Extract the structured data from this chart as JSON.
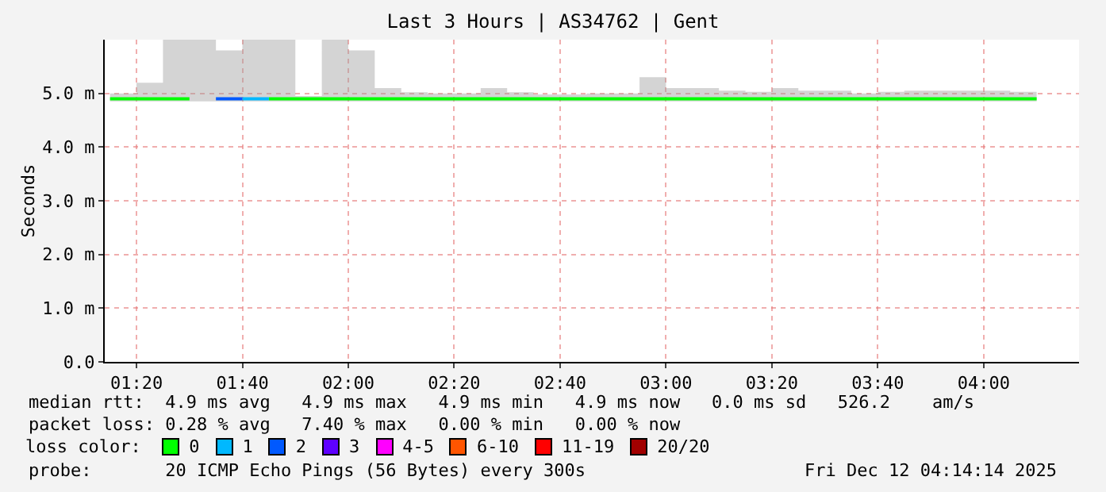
{
  "chart_data": {
    "type": "step",
    "title": "Last 3 Hours | AS34762 | Gent",
    "ylabel": "Seconds",
    "legend_title": "loss color:",
    "x": [
      "2025-12-12T01:15",
      "2025-12-12T01:20",
      "2025-12-12T01:25",
      "2025-12-12T01:30",
      "2025-12-12T01:35",
      "2025-12-12T01:40",
      "2025-12-12T01:45",
      "2025-12-12T01:50",
      "2025-12-12T01:55",
      "2025-12-12T02:00",
      "2025-12-12T02:05",
      "2025-12-12T02:10",
      "2025-12-12T02:15",
      "2025-12-12T02:20",
      "2025-12-12T02:25",
      "2025-12-12T02:30",
      "2025-12-12T02:35",
      "2025-12-12T02:40",
      "2025-12-12T02:45",
      "2025-12-12T02:50",
      "2025-12-12T02:55",
      "2025-12-12T03:00",
      "2025-12-12T03:05",
      "2025-12-12T03:10",
      "2025-12-12T03:15",
      "2025-12-12T03:20",
      "2025-12-12T03:25",
      "2025-12-12T03:30",
      "2025-12-12T03:35",
      "2025-12-12T03:40",
      "2025-12-12T03:45",
      "2025-12-12T03:50",
      "2025-12-12T03:55",
      "2025-12-12T04:00",
      "2025-12-12T04:05",
      "2025-12-12T04:10"
    ],
    "series": [
      {
        "name": "0",
        "color": "#00ff00",
        "values": [
          4.9,
          4.9,
          4.9,
          4.9,
          null,
          null,
          4.9,
          4.9,
          4.9,
          4.9,
          4.9,
          4.9,
          4.9,
          4.9,
          4.9,
          4.9,
          4.9,
          4.9,
          4.9,
          4.9,
          4.9,
          4.9,
          4.9,
          4.9,
          4.9,
          4.9,
          4.9,
          4.9,
          4.9,
          4.9,
          4.9,
          4.9,
          4.9,
          4.9,
          4.9,
          4.9
        ],
        "lower": [
          4.85,
          4.85,
          4.85,
          4.85,
          4.85,
          4.85,
          4.85,
          4.85,
          4.85,
          4.85,
          4.85,
          4.85,
          4.85,
          4.85,
          4.85,
          4.85,
          4.85,
          4.85,
          4.85,
          4.85,
          4.85,
          4.85,
          4.85,
          4.85,
          4.85,
          4.85,
          4.85,
          4.85,
          4.85,
          4.85,
          4.85,
          4.85,
          4.85,
          4.85,
          4.85,
          4.85
        ],
        "upper": [
          5,
          5.2,
          6,
          6,
          5.8,
          6,
          6,
          4.95,
          6,
          5.8,
          5.1,
          5.02,
          5,
          5,
          5.1,
          5.02,
          4.98,
          4.98,
          5,
          5,
          5.3,
          5.1,
          5.1,
          5.05,
          5.03,
          5.1,
          5.05,
          5.05,
          5,
          5.03,
          5.05,
          5.05,
          5.05,
          5.05,
          5.03,
          5.03
        ]
      },
      {
        "name": "1",
        "color": "#00b8ff",
        "x": [
          "2025-12-12T01:40",
          "2025-12-12T01:45"
        ],
        "values": [
          4.9,
          4.9
        ]
      },
      {
        "name": "2",
        "color": "#0059ff",
        "x": [
          "2025-12-12T01:35",
          "2025-12-12T01:40"
        ],
        "values": [
          4.9,
          4.9
        ]
      },
      {
        "name": "3",
        "color": "#5e00ff",
        "values": [
          null,
          null,
          null,
          null,
          null,
          null,
          null,
          null,
          null,
          null,
          null,
          null,
          null,
          null,
          null,
          null,
          null,
          null,
          null,
          null,
          null,
          null,
          null,
          null,
          null,
          null,
          null,
          null,
          null,
          null,
          null,
          null,
          null,
          null,
          null,
          null
        ]
      },
      {
        "name": "4-5",
        "color": "#ff00ff",
        "values": [
          null,
          null,
          null,
          null,
          null,
          null,
          null,
          null,
          null,
          null,
          null,
          null,
          null,
          null,
          null,
          null,
          null,
          null,
          null,
          null,
          null,
          null,
          null,
          null,
          null,
          null,
          null,
          null,
          null,
          null,
          null,
          null,
          null,
          null,
          null,
          null
        ]
      },
      {
        "name": "6-10",
        "color": "#ff5500",
        "values": [
          null,
          null,
          null,
          null,
          null,
          null,
          null,
          null,
          null,
          null,
          null,
          null,
          null,
          null,
          null,
          null,
          null,
          null,
          null,
          null,
          null,
          null,
          null,
          null,
          null,
          null,
          null,
          null,
          null,
          null,
          null,
          null,
          null,
          null,
          null,
          null
        ]
      },
      {
        "name": "11-19",
        "color": "#ff0000",
        "values": [
          null,
          null,
          null,
          null,
          null,
          null,
          null,
          null,
          null,
          null,
          null,
          null,
          null,
          null,
          null,
          null,
          null,
          null,
          null,
          null,
          null,
          null,
          null,
          null,
          null,
          null,
          null,
          null,
          null,
          null,
          null,
          null,
          null,
          null,
          null,
          null
        ]
      },
      {
        "name": "20/20",
        "color": "#a10000",
        "values": [
          null,
          null,
          null,
          null,
          null,
          null,
          null,
          null,
          null,
          null,
          null,
          null,
          null,
          null,
          null,
          null,
          null,
          null,
          null,
          null,
          null,
          null,
          null,
          null,
          null,
          null,
          null,
          null,
          null,
          null,
          null,
          null,
          null,
          null,
          null,
          null
        ]
      }
    ],
    "xlim": [
      "2025-12-12T01:14",
      "2025-12-12T04:18"
    ],
    "xticks": [
      {
        "value": "2025-12-12T01:20",
        "label": "01:20"
      },
      {
        "value": "2025-12-12T01:40",
        "label": "01:40"
      },
      {
        "value": "2025-12-12T02:00",
        "label": "02:00"
      },
      {
        "value": "2025-12-12T02:20",
        "label": "02:20"
      },
      {
        "value": "2025-12-12T02:40",
        "label": "02:40"
      },
      {
        "value": "2025-12-12T03:00",
        "label": "03:00"
      },
      {
        "value": "2025-12-12T03:20",
        "label": "03:20"
      },
      {
        "value": "2025-12-12T03:40",
        "label": "03:40"
      },
      {
        "value": "2025-12-12T04:00",
        "label": "04:00"
      }
    ],
    "ylim": [
      0,
      6
    ],
    "yticks": [
      {
        "value": 0,
        "label": "0.0"
      },
      {
        "value": 1,
        "label": "1.0 m"
      },
      {
        "value": 2,
        "label": "2.0 m"
      },
      {
        "value": 3,
        "label": "3.0 m"
      },
      {
        "value": 4,
        "label": "4.0 m"
      },
      {
        "value": 5,
        "label": "5.0 m"
      }
    ],
    "grid": true,
    "legend": "bottom",
    "line_style": "solid",
    "marker": "none",
    "annotations": [
      "median rtt:  4.9 ms avg   4.9 ms max   4.9 ms min   4.9 ms now   0.0 ms sd   526.2    am/s",
      "packet loss: 0.28 % avg   7.40 % max   0.00 % min   0.00 % now",
      "probe:       20 ICMP Echo Pings (56 Bytes) every 300s",
      "Fri Dec 12 04:14:14 2025"
    ]
  }
}
